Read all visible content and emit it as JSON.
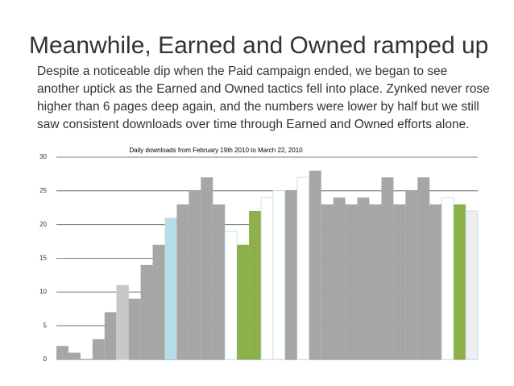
{
  "title": "Meanwhile, Earned and Owned ramped up",
  "body_lines": [
    "Despite a noticeable dip when the Paid campaign ended, we began to see",
    "another uptick as the Earned and Owned tactics fell into place. Zynked never rose",
    "higher than 6 pages deep again, and the numbers were lower by half but we still",
    "saw consistent downloads over time through Earned and Owned efforts alone."
  ],
  "chart_data": {
    "type": "bar",
    "title": "Daily downloads from February 19th 2010 to March 22, 2010",
    "values": [
      2,
      1,
      0,
      3,
      7,
      11,
      9,
      14,
      17,
      21,
      23,
      25,
      27,
      23,
      19,
      17,
      22,
      24,
      25,
      25,
      27,
      28,
      23,
      24,
      23,
      24,
      23,
      27,
      23,
      25,
      27,
      23,
      24,
      23,
      22
    ],
    "colors": [
      "#a6a6a6",
      "#a6a6a6",
      "#a6a6a6",
      "#a6a6a6",
      "#a6a6a6",
      "#c8c8c8",
      "#a6a6a6",
      "#a6a6a6",
      "#a6a6a6",
      "#b7dde8",
      "#a6a6a6",
      "#a6a6a6",
      "#a6a6a6",
      "#a6a6a6",
      "#ffffff",
      "#8db04a",
      "#8db04a",
      "#ffffff",
      "#ffffff",
      "#a6a6a6",
      "#ffffff",
      "#a6a6a6",
      "#a6a6a6",
      "#a6a6a6",
      "#a6a6a6",
      "#a6a6a6",
      "#a6a6a6",
      "#a6a6a6",
      "#a6a6a6",
      "#a6a6a6",
      "#a6a6a6",
      "#a6a6a6",
      "#ffffff",
      "#8db04a",
      "#eeeeee"
    ],
    "ylim": [
      0,
      30
    ],
    "yticks": [
      0,
      5,
      10,
      15,
      20,
      25,
      30
    ],
    "grid": true
  }
}
